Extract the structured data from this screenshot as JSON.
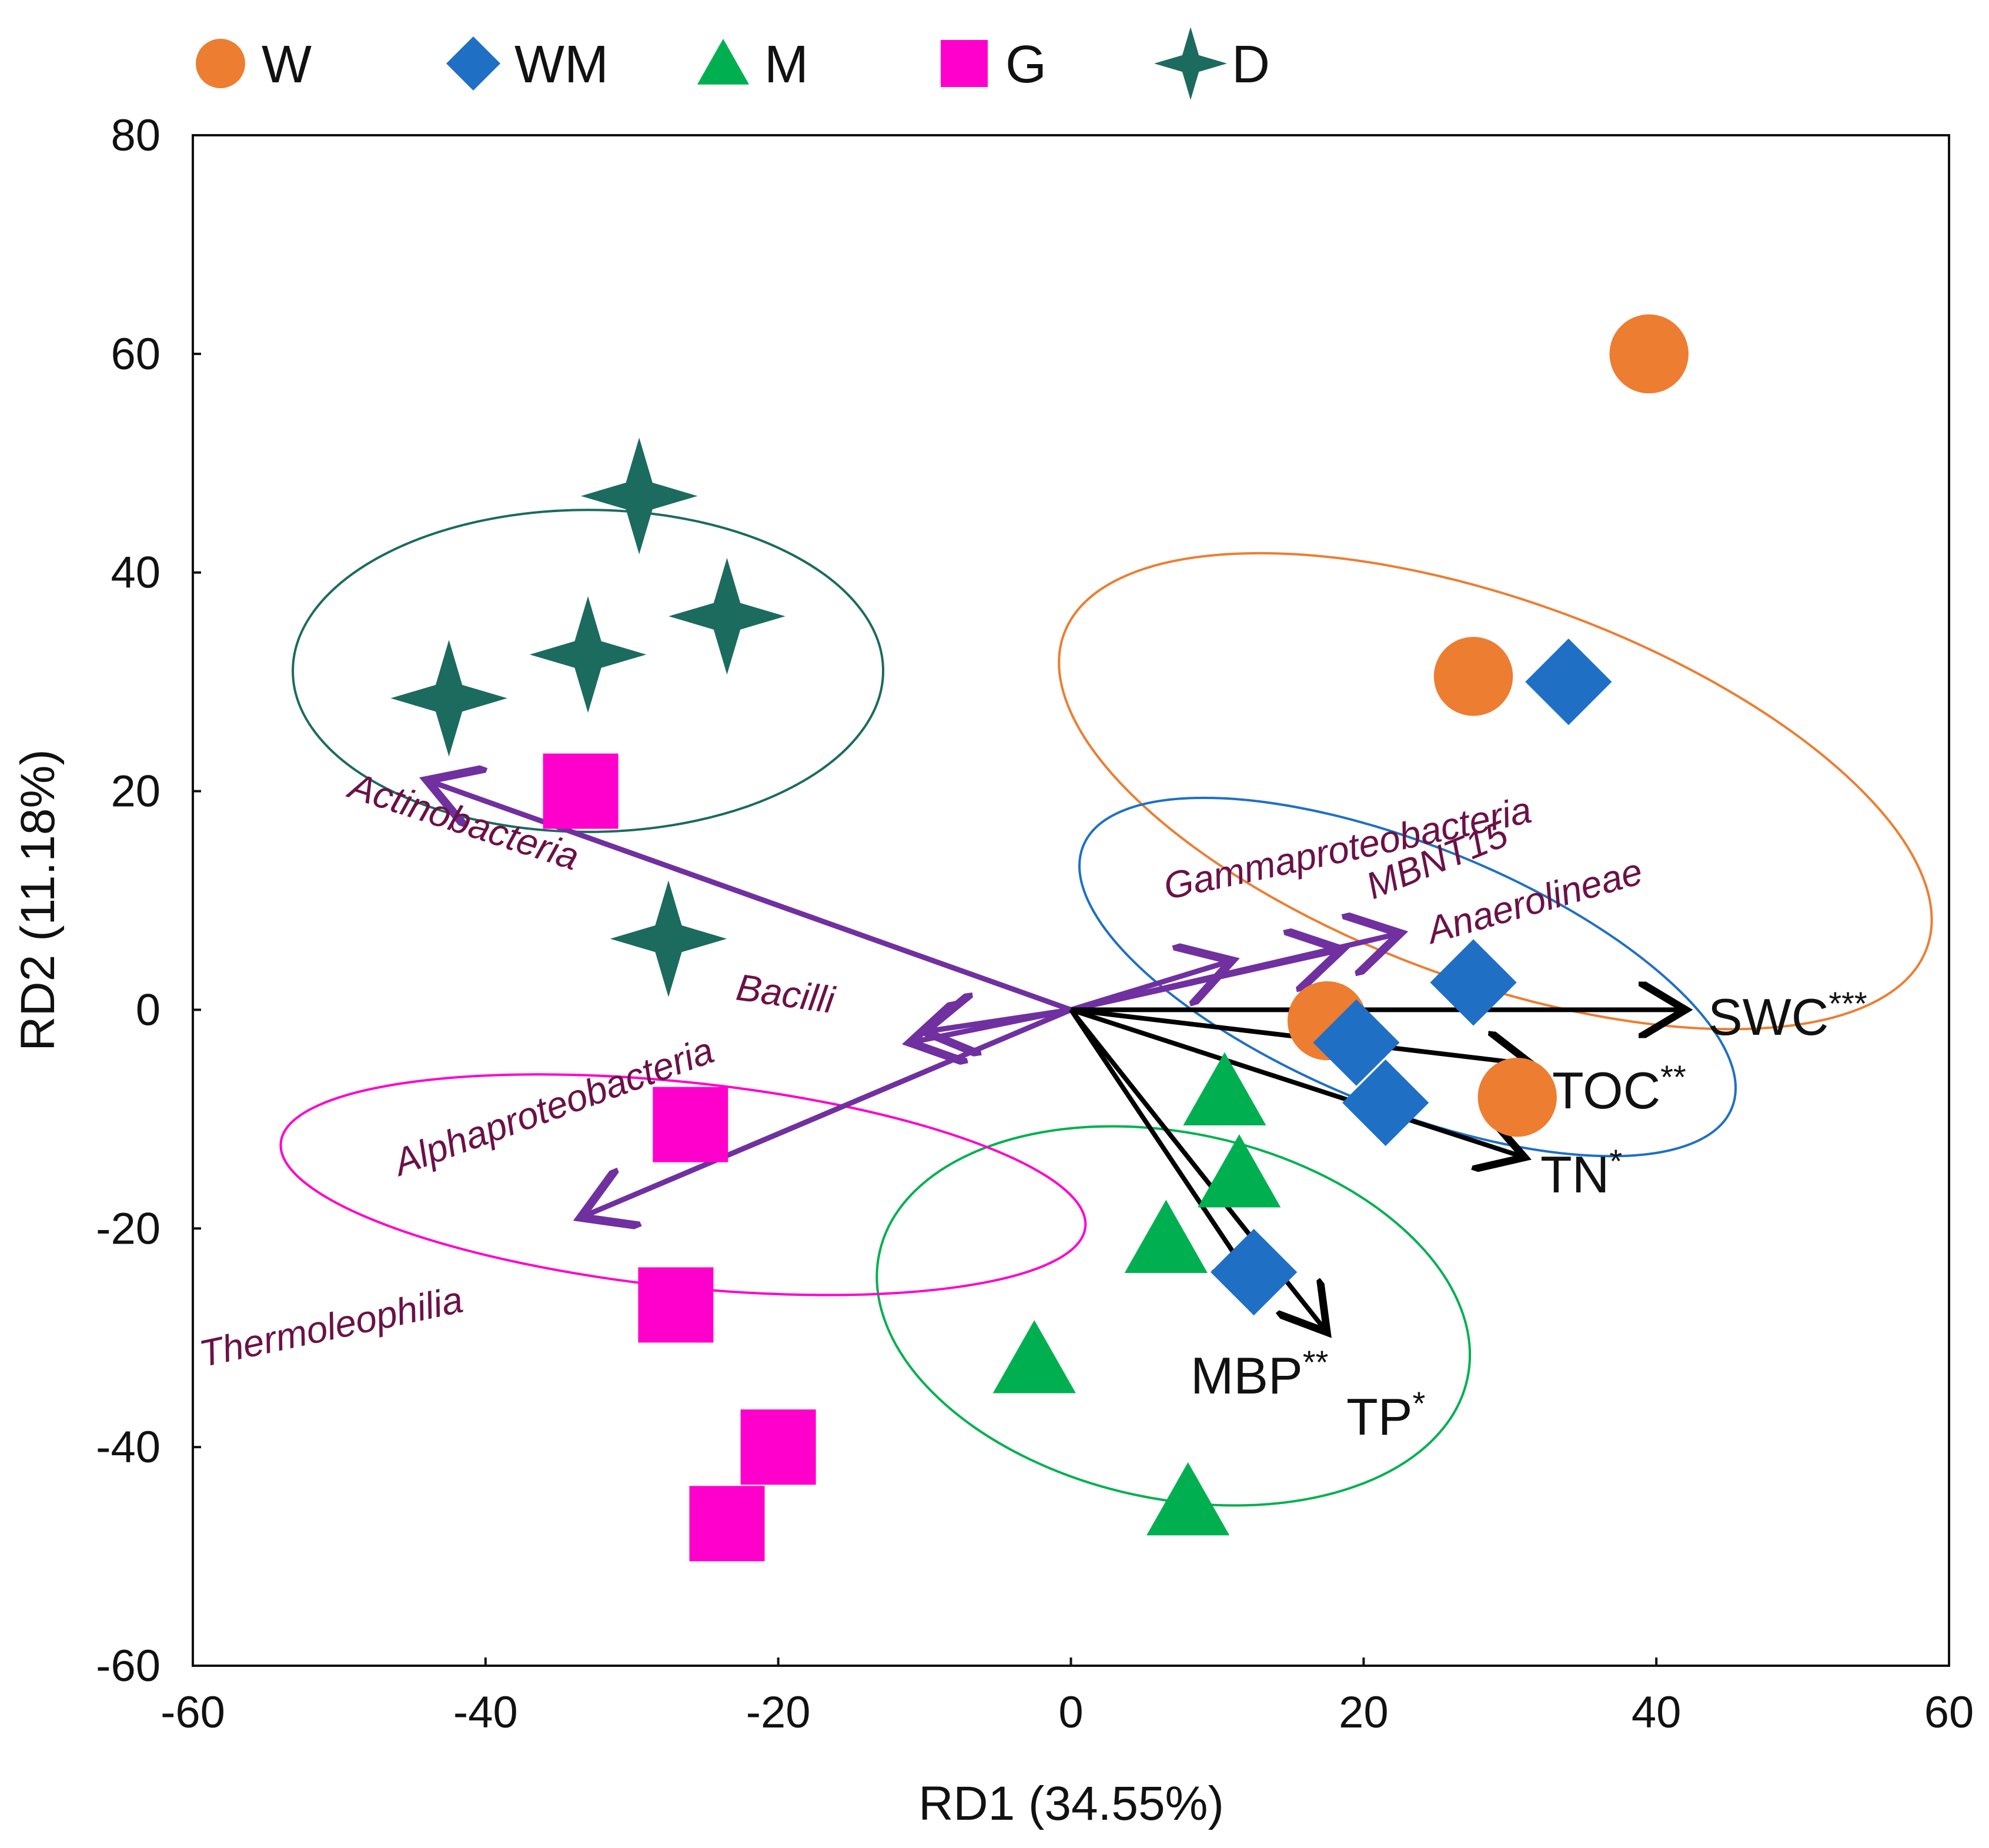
{
  "chart_data": {
    "type": "scatter",
    "subtype": "RDA biplot",
    "title": "",
    "xlabel": "RD1 (34.55%)",
    "ylabel": "RD2 (11.18%)",
    "xlim": [
      -60,
      60
    ],
    "ylim": [
      -60,
      80
    ],
    "xticks": [
      -60,
      -40,
      -20,
      0,
      20,
      40,
      60
    ],
    "yticks": [
      -60,
      -40,
      -20,
      0,
      20,
      40,
      60,
      80
    ],
    "grid": false,
    "legend_position": "top",
    "series": [
      {
        "name": "W",
        "marker": "circle",
        "color": "#ed7d31",
        "points": [
          [
            39.5,
            60
          ],
          [
            27.5,
            30.5
          ],
          [
            17.5,
            -1
          ],
          [
            30.5,
            -8
          ]
        ]
      },
      {
        "name": "WM",
        "marker": "diamond",
        "color": "#1f6fc5",
        "points": [
          [
            34,
            30
          ],
          [
            27.5,
            2.5
          ],
          [
            19.5,
            -3
          ],
          [
            21.5,
            -8.5
          ],
          [
            12.5,
            -24
          ]
        ]
      },
      {
        "name": "M",
        "marker": "triangle",
        "color": "#00b050",
        "points": [
          [
            10.5,
            -7.5
          ],
          [
            11.5,
            -15
          ],
          [
            6.5,
            -21
          ],
          [
            -2.5,
            -32
          ],
          [
            8,
            -45
          ]
        ]
      },
      {
        "name": "G",
        "marker": "square",
        "color": "#ff00cc",
        "points": [
          [
            -33.5,
            20
          ],
          [
            -26,
            -10.5
          ],
          [
            -27,
            -27
          ],
          [
            -20,
            -40
          ],
          [
            -23.5,
            -47
          ]
        ]
      },
      {
        "name": "D",
        "marker": "star4",
        "color": "#1b6b5e",
        "points": [
          [
            -29.5,
            47
          ],
          [
            -23.5,
            36
          ],
          [
            -33,
            32.5
          ],
          [
            -42.5,
            28.5
          ],
          [
            -27.5,
            6.5
          ]
        ]
      }
    ],
    "ellipses": [
      {
        "group": "W",
        "cx": 29,
        "cy": 20,
        "rx": 13,
        "ry": 42,
        "angle": -70
      },
      {
        "group": "WM",
        "cx": 23,
        "cy": 3,
        "rx": 9,
        "ry": 32,
        "angle": -68
      },
      {
        "group": "M",
        "cx": 7,
        "cy": -28,
        "rx": 12.5,
        "ry": 27.5,
        "angle": -78
      },
      {
        "group": "G",
        "cx": -26.5,
        "cy": -16,
        "rx": 7,
        "ry": 37,
        "angle": -84
      },
      {
        "group": "D",
        "cx": -33,
        "cy": 31,
        "rx": 11,
        "ry": 27,
        "angle": -90
      }
    ],
    "taxa_vectors": {
      "color": "#7030a0",
      "items": [
        {
          "label": "Actinobacteria",
          "x": -44,
          "y": 21
        },
        {
          "label": "Bacilli",
          "x": -10,
          "y": -2
        },
        {
          "label": "Alphaproteobacteria",
          "x": -11,
          "y": -3
        },
        {
          "label": "Thermoleophilia",
          "x": -33.5,
          "y": -19
        },
        {
          "label": "Gammaproteobacteria",
          "x": 11,
          "y": 4.5
        },
        {
          "label": "MBNT15",
          "x": 18.5,
          "y": 5.5
        },
        {
          "label": "Anaerolineae",
          "x": 22.5,
          "y": 7
        }
      ]
    },
    "env_vectors": {
      "color": "#000000",
      "items": [
        {
          "label": "SWC",
          "sig": "***",
          "x": 42,
          "y": 0
        },
        {
          "label": "TOC",
          "sig": "**",
          "x": 31.5,
          "y": -5
        },
        {
          "label": "TN",
          "sig": "*",
          "x": 31,
          "y": -13.5
        },
        {
          "label": "MBP",
          "sig": "**",
          "x": 13,
          "y": -26
        },
        {
          "label": "TP",
          "sig": "*",
          "x": 17.5,
          "y": -29.5
        }
      ]
    }
  }
}
